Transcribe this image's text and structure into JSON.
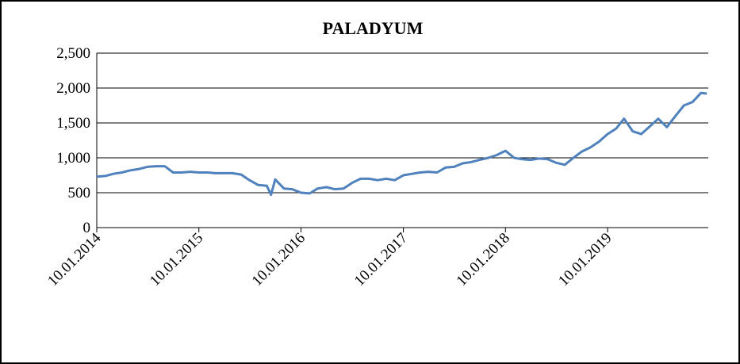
{
  "chart_data": {
    "type": "line",
    "title": "PALADYUM",
    "x": [
      "2014-01-10",
      "2014-02-10",
      "2014-03-10",
      "2014-04-10",
      "2014-05-10",
      "2014-06-10",
      "2014-07-10",
      "2014-08-10",
      "2014-09-10",
      "2014-10-10",
      "2014-11-10",
      "2014-12-10",
      "2015-01-10",
      "2015-02-10",
      "2015-03-10",
      "2015-04-10",
      "2015-05-10",
      "2015-06-10",
      "2015-07-10",
      "2015-08-10",
      "2015-09-10",
      "2015-09-25",
      "2015-10-10",
      "2015-11-10",
      "2015-12-10",
      "2016-01-10",
      "2016-02-10",
      "2016-03-10",
      "2016-04-10",
      "2016-05-10",
      "2016-06-10",
      "2016-07-10",
      "2016-08-10",
      "2016-09-10",
      "2016-10-10",
      "2016-11-10",
      "2016-12-10",
      "2017-01-10",
      "2017-02-10",
      "2017-03-10",
      "2017-04-10",
      "2017-05-10",
      "2017-06-10",
      "2017-07-10",
      "2017-08-10",
      "2017-09-10",
      "2017-10-10",
      "2017-11-10",
      "2017-12-10",
      "2018-01-10",
      "2018-02-10",
      "2018-03-10",
      "2018-04-10",
      "2018-05-10",
      "2018-06-10",
      "2018-07-10",
      "2018-08-10",
      "2018-09-10",
      "2018-10-10",
      "2018-11-10",
      "2018-12-10",
      "2019-01-10",
      "2019-02-10",
      "2019-03-10",
      "2019-04-10",
      "2019-05-10",
      "2019-06-10",
      "2019-07-10",
      "2019-08-10",
      "2019-09-10",
      "2019-10-10",
      "2019-11-10",
      "2019-12-10",
      "2019-12-31"
    ],
    "series": [
      {
        "name": "PALADYUM",
        "color": "#4f81bd",
        "values": [
          730,
          740,
          770,
          790,
          820,
          840,
          870,
          880,
          880,
          790,
          790,
          800,
          790,
          790,
          780,
          780,
          780,
          760,
          680,
          610,
          600,
          470,
          690,
          560,
          550,
          500,
          490,
          560,
          580,
          550,
          560,
          640,
          700,
          700,
          680,
          700,
          680,
          750,
          770,
          790,
          800,
          790,
          860,
          870,
          920,
          940,
          970,
          1000,
          1040,
          1100,
          1000,
          980,
          970,
          990,
          980,
          930,
          900,
          1000,
          1090,
          1150,
          1230,
          1340,
          1420,
          1560,
          1380,
          1340,
          1450,
          1560,
          1440,
          1600,
          1750,
          1800,
          1930,
          1920
        ]
      }
    ],
    "xlim": [
      "2014-01-10",
      "2020-01-05"
    ],
    "xticks": [
      {
        "value": "2014-01-10",
        "label": "10.01.2014"
      },
      {
        "value": "2015-01-10",
        "label": "10.01.2015"
      },
      {
        "value": "2016-01-10",
        "label": "10.01.2016"
      },
      {
        "value": "2017-01-10",
        "label": "10.01.2017"
      },
      {
        "value": "2018-01-10",
        "label": "10.01.2018"
      },
      {
        "value": "2019-01-10",
        "label": "10.01.2019"
      }
    ],
    "ylim": [
      0,
      2500
    ],
    "yticks": [
      0,
      500,
      {
        "value": 1000,
        "label": "1,000"
      },
      {
        "value": 1500,
        "label": "1,500"
      },
      {
        "value": 2000,
        "label": "2,000"
      },
      {
        "value": 2500,
        "label": "2,500"
      }
    ],
    "grid": true
  }
}
